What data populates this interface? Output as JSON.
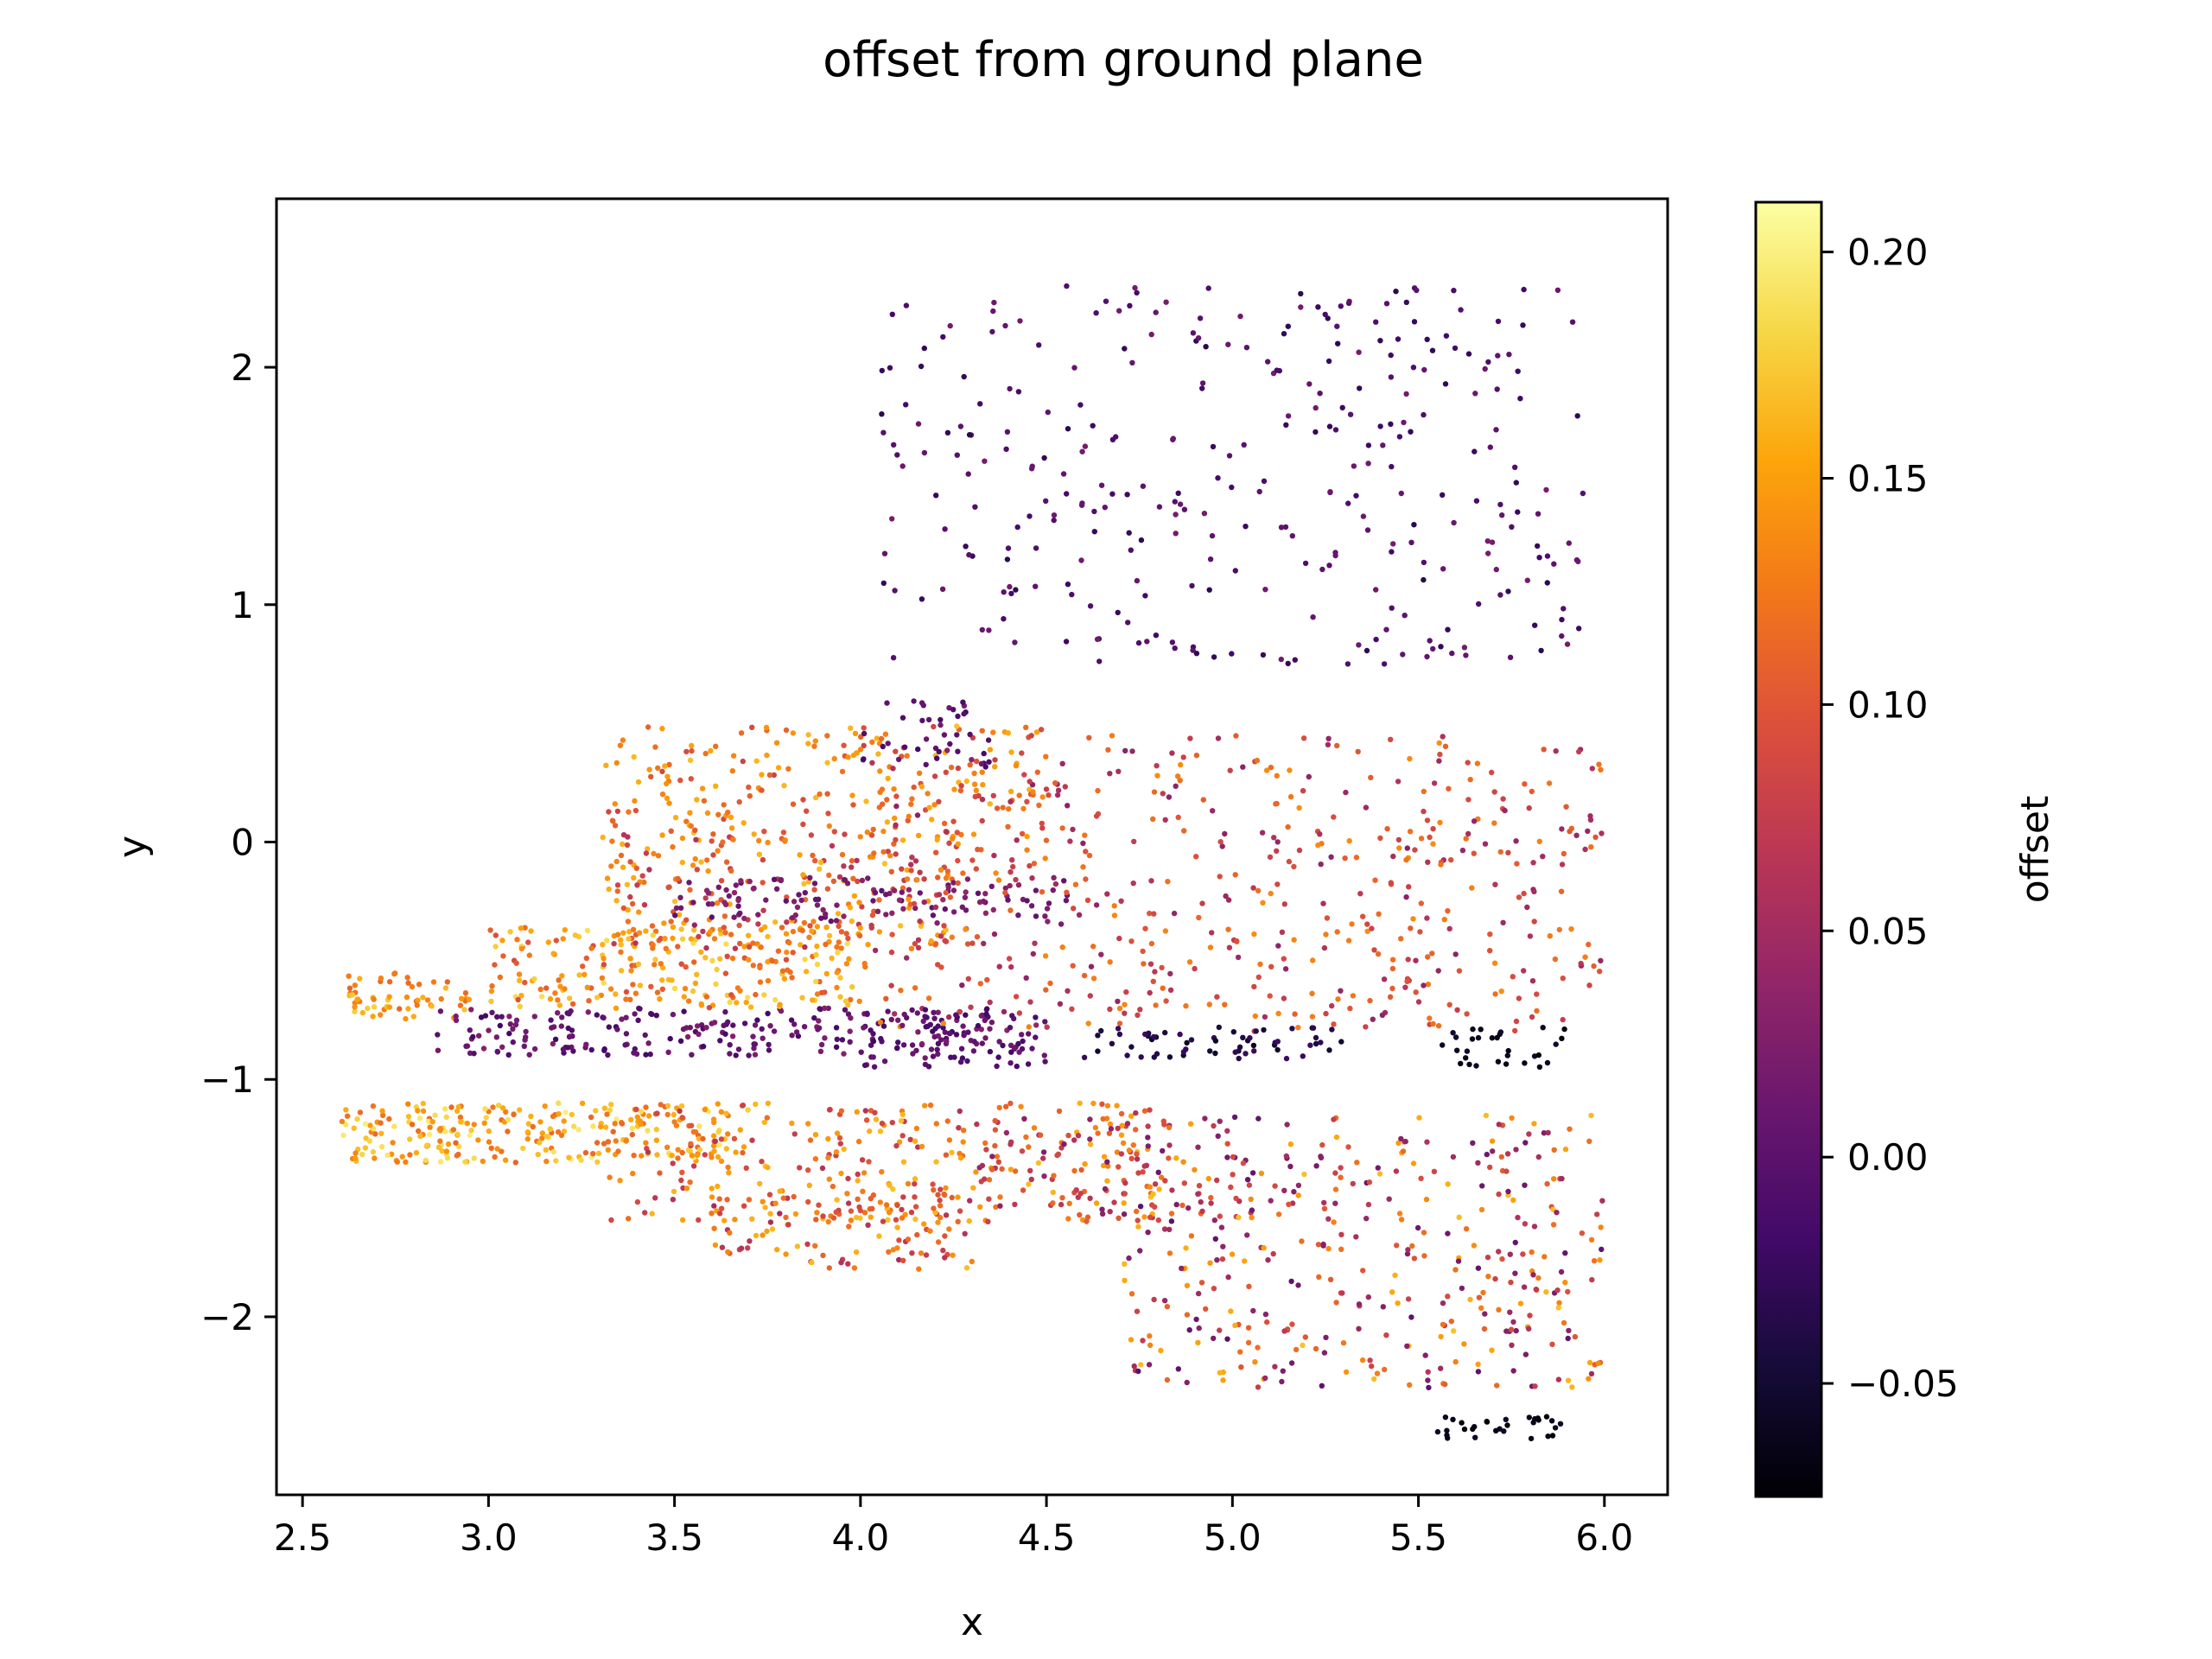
{
  "chart_data": {
    "type": "scatter",
    "title": "offset from ground plane",
    "xlabel": "x",
    "ylabel": "y",
    "xlim": [
      2.43,
      6.17
    ],
    "ylim": [
      -2.75,
      2.71
    ],
    "x_ticks": [
      2.5,
      3.0,
      3.5,
      4.0,
      4.5,
      5.0,
      5.5,
      6.0
    ],
    "x_tick_labels": [
      "2.5",
      "3.0",
      "3.5",
      "4.0",
      "4.5",
      "5.0",
      "5.5",
      "6.0"
    ],
    "y_ticks": [
      -2,
      -1,
      0,
      1,
      2
    ],
    "y_tick_labels": [
      "−2",
      "−1",
      "0",
      "1",
      "2"
    ],
    "grid": false,
    "colorbar": {
      "label": "offset",
      "colormap": "inferno",
      "range": [
        -0.075,
        0.211
      ],
      "ticks": [
        -0.05,
        0.0,
        0.05,
        0.1,
        0.15,
        0.2
      ],
      "tick_labels": [
        "−0.05",
        "0.00",
        "0.05",
        "0.10",
        "0.15",
        "0.20"
      ]
    },
    "point_groups": [
      {
        "x": [
          4.05,
          5.95
        ],
        "y": [
          0.75,
          2.35
        ],
        "n": 320,
        "c": [
          -0.035,
          0.02
        ]
      },
      {
        "x": [
          2.62,
          2.95
        ],
        "y": [
          -0.75,
          -0.55
        ],
        "n": 60,
        "c": [
          0.11,
          0.18
        ]
      },
      {
        "x": [
          2.85,
          4.35
        ],
        "y": [
          -0.9,
          -0.7
        ],
        "n": 220,
        "c": [
          -0.02,
          0.03
        ]
      },
      {
        "x": [
          3.0,
          4.0
        ],
        "y": [
          -0.7,
          -0.35
        ],
        "n": 240,
        "c": [
          0.09,
          0.19
        ]
      },
      {
        "x": [
          3.3,
          4.3
        ],
        "y": [
          -0.45,
          0.05
        ],
        "n": 240,
        "c": [
          0.06,
          0.17
        ]
      },
      {
        "x": [
          3.5,
          4.6
        ],
        "y": [
          -0.35,
          -0.15
        ],
        "n": 120,
        "c": [
          0.0,
          0.04
        ]
      },
      {
        "x": [
          3.3,
          4.5
        ],
        "y": [
          0.0,
          0.5
        ],
        "n": 220,
        "c": [
          0.08,
          0.17
        ]
      },
      {
        "x": [
          4.0,
          6.0
        ],
        "y": [
          -0.8,
          0.45
        ],
        "n": 520,
        "c": [
          0.03,
          0.14
        ]
      },
      {
        "x": [
          4.0,
          4.5
        ],
        "y": [
          -0.95,
          -0.7
        ],
        "n": 90,
        "c": [
          -0.02,
          0.02
        ]
      },
      {
        "x": [
          4.6,
          5.3
        ],
        "y": [
          -0.92,
          -0.78
        ],
        "n": 60,
        "c": [
          -0.06,
          -0.02
        ]
      },
      {
        "x": [
          5.55,
          5.9
        ],
        "y": [
          -0.95,
          -0.78
        ],
        "n": 30,
        "c": [
          -0.07,
          -0.05
        ]
      },
      {
        "x": [
          4.0,
          4.35
        ],
        "y": [
          0.3,
          0.6
        ],
        "n": 40,
        "c": [
          -0.02,
          0.02
        ]
      },
      {
        "x": [
          2.6,
          3.7
        ],
        "y": [
          -1.35,
          -1.1
        ],
        "n": 260,
        "c": [
          0.11,
          0.2
        ]
      },
      {
        "x": [
          3.3,
          4.8
        ],
        "y": [
          -1.6,
          -1.1
        ],
        "n": 320,
        "c": [
          0.06,
          0.17
        ]
      },
      {
        "x": [
          3.6,
          4.3
        ],
        "y": [
          -1.8,
          -1.5
        ],
        "n": 100,
        "c": [
          0.04,
          0.17
        ]
      },
      {
        "x": [
          4.3,
          5.1
        ],
        "y": [
          -1.6,
          -1.12
        ],
        "n": 60,
        "c": [
          0.02,
          0.12
        ]
      },
      {
        "x": [
          4.7,
          6.0
        ],
        "y": [
          -2.3,
          -1.15
        ],
        "n": 400,
        "c": [
          0.0,
          0.17
        ]
      },
      {
        "x": [
          5.55,
          5.9
        ],
        "y": [
          -2.52,
          -2.42
        ],
        "n": 30,
        "c": [
          -0.075,
          -0.055
        ]
      }
    ]
  }
}
